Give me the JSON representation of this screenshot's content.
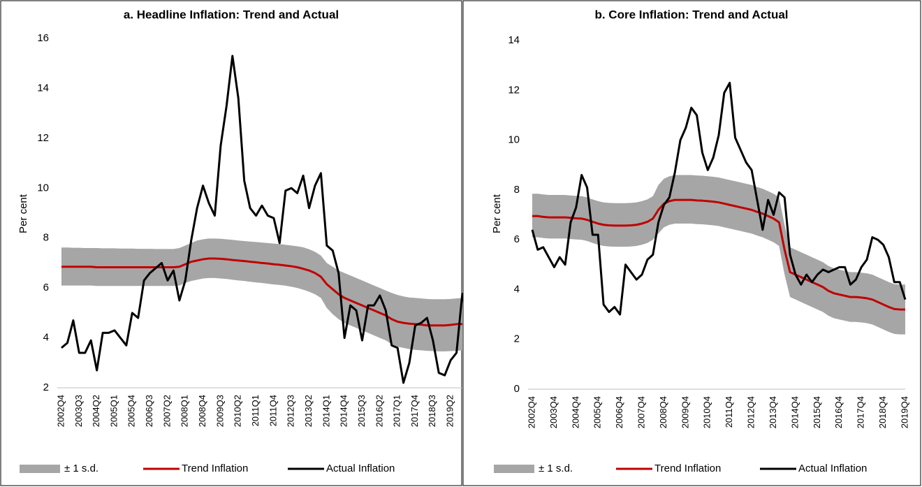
{
  "chart_data": [
    {
      "type": "line",
      "title": "a. Headline Inflation: Trend and Actual",
      "y_label": "Per cent",
      "categories": [
        "2002Q4",
        null,
        null,
        "2003Q3",
        null,
        null,
        "2004Q2",
        null,
        null,
        "2005Q1",
        null,
        null,
        "2005Q4",
        null,
        null,
        "2006Q3",
        null,
        null,
        "2007Q2",
        null,
        null,
        "2008Q1",
        null,
        null,
        "2008Q4",
        null,
        null,
        "2009Q3",
        null,
        null,
        "2010Q2",
        null,
        null,
        "2011Q1",
        null,
        null,
        "2011Q4",
        null,
        null,
        "2012Q3",
        null,
        null,
        "2013Q2",
        null,
        null,
        "2014Q1",
        null,
        null,
        "2014Q4",
        null,
        null,
        "2015Q3",
        null,
        null,
        "2016Q2",
        null,
        null,
        "2017Q1",
        null,
        null,
        "2017Q4",
        null,
        null,
        "2018Q3",
        null,
        null,
        "2019Q2",
        null,
        null
      ],
      "ylim": [
        2,
        16
      ],
      "yticks": [
        2,
        4,
        6,
        8,
        10,
        12,
        14,
        16
      ],
      "series": [
        {
          "name": "± 1 s.d.",
          "color": "#a6a6a6",
          "upper": [
            7.62,
            7.62,
            7.61,
            7.61,
            7.6,
            7.6,
            7.6,
            7.59,
            7.59,
            7.59,
            7.58,
            7.58,
            7.58,
            7.57,
            7.57,
            7.57,
            7.56,
            7.56,
            7.56,
            7.56,
            7.6,
            7.7,
            7.8,
            7.9,
            7.95,
            7.98,
            7.98,
            7.97,
            7.95,
            7.93,
            7.9,
            7.88,
            7.86,
            7.84,
            7.82,
            7.8,
            7.78,
            7.76,
            7.73,
            7.7,
            7.67,
            7.63,
            7.55,
            7.45,
            7.3,
            7.0,
            6.85,
            6.7,
            6.6,
            6.5,
            6.4,
            6.3,
            6.2,
            6.1,
            6.0,
            5.9,
            5.8,
            5.72,
            5.66,
            5.62,
            5.6,
            5.58,
            5.56,
            5.55,
            5.55,
            5.55,
            5.56,
            5.58,
            5.6
          ],
          "lower": [
            6.1,
            6.1,
            6.1,
            6.1,
            6.1,
            6.1,
            6.08,
            6.08,
            6.08,
            6.08,
            6.08,
            6.08,
            6.08,
            6.08,
            6.08,
            6.08,
            6.08,
            6.08,
            6.08,
            6.08,
            6.1,
            6.2,
            6.28,
            6.33,
            6.38,
            6.4,
            6.4,
            6.38,
            6.36,
            6.33,
            6.3,
            6.28,
            6.25,
            6.22,
            6.2,
            6.17,
            6.14,
            6.12,
            6.09,
            6.05,
            6.0,
            5.93,
            5.85,
            5.75,
            5.6,
            5.2,
            4.95,
            4.75,
            4.6,
            4.5,
            4.4,
            4.3,
            4.2,
            4.1,
            4.0,
            3.9,
            3.75,
            3.65,
            3.6,
            3.55,
            3.52,
            3.5,
            3.48,
            3.47,
            3.46,
            3.46,
            3.47,
            3.48,
            3.5
          ]
        },
        {
          "name": "Trend Inflation",
          "color": "#c00000",
          "values": [
            6.85,
            6.85,
            6.85,
            6.85,
            6.85,
            6.85,
            6.83,
            6.83,
            6.83,
            6.83,
            6.83,
            6.83,
            6.83,
            6.83,
            6.83,
            6.83,
            6.83,
            6.83,
            6.83,
            6.83,
            6.85,
            6.95,
            7.05,
            7.1,
            7.15,
            7.18,
            7.18,
            7.17,
            7.15,
            7.12,
            7.1,
            7.08,
            7.05,
            7.03,
            7.0,
            6.98,
            6.95,
            6.93,
            6.9,
            6.87,
            6.83,
            6.77,
            6.7,
            6.6,
            6.45,
            6.15,
            5.95,
            5.75,
            5.6,
            5.5,
            5.4,
            5.3,
            5.2,
            5.1,
            5.0,
            4.9,
            4.75,
            4.65,
            4.6,
            4.57,
            4.55,
            4.53,
            4.5,
            4.5,
            4.5,
            4.5,
            4.52,
            4.55,
            4.55
          ]
        },
        {
          "name": "Actual Inflation",
          "color": "#000000",
          "values": [
            3.6,
            3.8,
            4.7,
            3.4,
            3.4,
            3.9,
            2.7,
            4.2,
            4.2,
            4.3,
            4.0,
            3.7,
            5.0,
            4.8,
            6.3,
            6.6,
            6.8,
            7.0,
            6.3,
            6.7,
            5.5,
            6.3,
            7.9,
            9.2,
            10.1,
            9.4,
            8.9,
            11.7,
            13.3,
            15.3,
            13.6,
            10.3,
            9.2,
            8.9,
            9.3,
            8.9,
            8.8,
            7.8,
            9.9,
            10.0,
            9.8,
            10.5,
            9.2,
            10.1,
            10.6,
            7.7,
            7.5,
            6.6,
            4.0,
            5.3,
            5.1,
            3.9,
            5.3,
            5.3,
            5.7,
            5.1,
            3.7,
            3.6,
            2.2,
            3.0,
            4.5,
            4.6,
            4.8,
            3.9,
            2.6,
            2.5,
            3.1,
            3.4,
            5.8
          ]
        }
      ]
    },
    {
      "type": "line",
      "title": "b. Core Inflation: Trend and Actual",
      "y_label": "Per cent",
      "categories": [
        "2002Q4",
        null,
        null,
        null,
        "2003Q4",
        null,
        null,
        null,
        "2004Q4",
        null,
        null,
        null,
        "2005Q4",
        null,
        null,
        null,
        "2006Q4",
        null,
        null,
        null,
        "2007Q4",
        null,
        null,
        null,
        "2008Q4",
        null,
        null,
        null,
        "2009Q4",
        null,
        null,
        null,
        "2010Q4",
        null,
        null,
        null,
        "2011Q4",
        null,
        null,
        null,
        "2012Q4",
        null,
        null,
        null,
        "2013Q4",
        null,
        null,
        null,
        "2014Q4",
        null,
        null,
        null,
        "2015Q4",
        null,
        null,
        null,
        "2016Q4",
        null,
        null,
        null,
        "2017Q4",
        null,
        null,
        null,
        "2018Q4",
        null,
        null,
        null,
        "2019Q4"
      ],
      "ylim": [
        0,
        14
      ],
      "yticks": [
        0,
        2,
        4,
        6,
        8,
        10,
        12,
        14
      ],
      "series": [
        {
          "name": "± 1 s.d.",
          "color": "#a6a6a6",
          "upper": [
            7.85,
            7.85,
            7.82,
            7.8,
            7.8,
            7.8,
            7.8,
            7.78,
            7.76,
            7.75,
            7.7,
            7.62,
            7.55,
            7.5,
            7.48,
            7.47,
            7.47,
            7.47,
            7.48,
            7.5,
            7.55,
            7.62,
            7.75,
            8.2,
            8.45,
            8.55,
            8.6,
            8.6,
            8.6,
            8.6,
            8.58,
            8.57,
            8.55,
            8.53,
            8.5,
            8.45,
            8.4,
            8.35,
            8.3,
            8.25,
            8.2,
            8.12,
            8.05,
            7.95,
            7.85,
            7.7,
            6.6,
            5.7,
            5.6,
            5.5,
            5.4,
            5.3,
            5.2,
            5.1,
            4.95,
            4.85,
            4.8,
            4.75,
            4.7,
            4.7,
            4.68,
            4.65,
            4.6,
            4.5,
            4.4,
            4.3,
            4.22,
            4.2,
            4.2
          ],
          "lower": [
            6.1,
            6.1,
            6.07,
            6.05,
            6.05,
            6.05,
            6.05,
            6.03,
            6.01,
            6.0,
            5.95,
            5.87,
            5.8,
            5.75,
            5.73,
            5.72,
            5.72,
            5.72,
            5.73,
            5.75,
            5.8,
            5.87,
            6.0,
            6.25,
            6.5,
            6.6,
            6.65,
            6.65,
            6.65,
            6.65,
            6.63,
            6.62,
            6.6,
            6.58,
            6.55,
            6.5,
            6.45,
            6.4,
            6.35,
            6.3,
            6.25,
            6.17,
            6.1,
            6.0,
            5.9,
            5.75,
            4.6,
            3.7,
            3.6,
            3.5,
            3.4,
            3.3,
            3.2,
            3.1,
            2.95,
            2.85,
            2.8,
            2.75,
            2.7,
            2.7,
            2.68,
            2.65,
            2.6,
            2.5,
            2.4,
            2.3,
            2.22,
            2.2,
            2.2
          ]
        },
        {
          "name": "Trend Inflation",
          "color": "#c00000",
          "values": [
            6.95,
            6.95,
            6.92,
            6.9,
            6.9,
            6.9,
            6.9,
            6.88,
            6.86,
            6.85,
            6.8,
            6.72,
            6.65,
            6.6,
            6.58,
            6.57,
            6.57,
            6.57,
            6.58,
            6.6,
            6.65,
            6.72,
            6.85,
            7.2,
            7.45,
            7.55,
            7.6,
            7.6,
            7.6,
            7.6,
            7.58,
            7.57,
            7.55,
            7.53,
            7.5,
            7.45,
            7.4,
            7.35,
            7.3,
            7.25,
            7.2,
            7.12,
            7.05,
            6.95,
            6.85,
            6.7,
            5.6,
            4.7,
            4.6,
            4.5,
            4.4,
            4.3,
            4.2,
            4.1,
            3.95,
            3.85,
            3.8,
            3.75,
            3.7,
            3.7,
            3.68,
            3.65,
            3.6,
            3.5,
            3.4,
            3.3,
            3.22,
            3.2,
            3.2
          ]
        },
        {
          "name": "Actual Inflation",
          "color": "#000000",
          "values": [
            6.4,
            5.6,
            5.7,
            5.3,
            4.9,
            5.3,
            5.0,
            6.7,
            7.3,
            8.6,
            8.1,
            6.2,
            6.2,
            3.4,
            3.1,
            3.3,
            3.0,
            5.0,
            4.7,
            4.4,
            4.6,
            5.2,
            5.4,
            6.7,
            7.4,
            7.7,
            8.7,
            10.0,
            10.5,
            11.3,
            11.0,
            9.5,
            8.8,
            9.3,
            10.2,
            11.9,
            12.3,
            10.1,
            9.6,
            9.1,
            8.8,
            7.6,
            6.4,
            7.6,
            7.0,
            7.9,
            7.7,
            5.4,
            4.6,
            4.2,
            4.6,
            4.3,
            4.6,
            4.8,
            4.7,
            4.8,
            4.9,
            4.9,
            4.2,
            4.4,
            4.9,
            5.2,
            6.1,
            6.0,
            5.8,
            5.3,
            4.3,
            4.3,
            3.6
          ]
        }
      ]
    }
  ]
}
